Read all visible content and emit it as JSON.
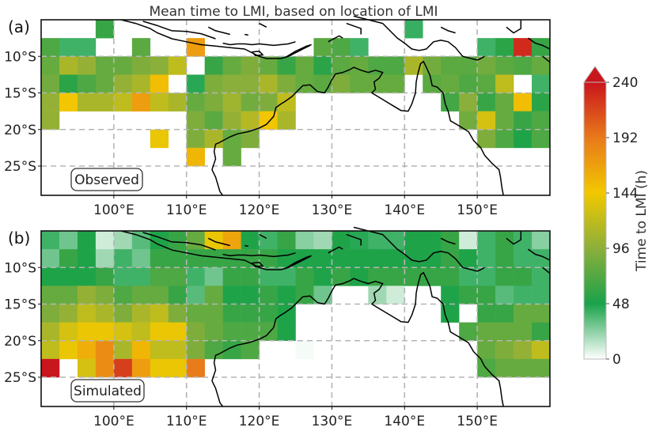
{
  "figure": {
    "title": "Mean time to LMI, based on location of LMI",
    "colorbar_label": "Time to LMI (h)",
    "colorbar_ticks": [
      "0",
      "48",
      "96",
      "144",
      "192",
      "240"
    ],
    "colorbar_range": [
      0,
      240
    ],
    "colorbar_extend": "max",
    "colormap_stops": [
      "#ffffff",
      "#1aa24a",
      "#8caf3a",
      "#f2c800",
      "#e8791b",
      "#c9151c"
    ],
    "colors": {
      "land": "#ffffff",
      "grid": "#b5b5b5",
      "coast": "#000000",
      "over": "#c9151c"
    }
  },
  "map": {
    "lon_range": [
      90,
      160
    ],
    "lat_range": [
      -29,
      -5
    ],
    "xticks": [
      "100°E",
      "110°E",
      "120°E",
      "130°E",
      "140°E",
      "150°E"
    ],
    "yticks": [
      "10°S",
      "15°S",
      "20°S",
      "25°S"
    ],
    "cell_size_deg": 2.5
  },
  "panels": [
    {
      "label": "(a)",
      "box_label": "Observed",
      "rows_note": "values in hours; null = no data",
      "lat_top": -5,
      "rows": [
        [
          null,
          null,
          null,
          60,
          null,
          null,
          null,
          null,
          null,
          null,
          null,
          null,
          null,
          null,
          null,
          null,
          null,
          null,
          null,
          null,
          42,
          null,
          null,
          null,
          null,
          null,
          null,
          null
        ],
        [
          70,
          40,
          40,
          null,
          null,
          75,
          null,
          null,
          170,
          null,
          null,
          null,
          null,
          null,
          null,
          75,
          70,
          40,
          null,
          null,
          null,
          null,
          null,
          null,
          40,
          55,
          230,
          60
        ],
        [
          80,
          110,
          100,
          80,
          80,
          90,
          95,
          120,
          null,
          60,
          80,
          90,
          80,
          60,
          80,
          55,
          75,
          80,
          70,
          70,
          110,
          85,
          75,
          75,
          85,
          75,
          70,
          80
        ],
        [
          85,
          55,
          70,
          80,
          100,
          110,
          150,
          null,
          45,
          90,
          95,
          95,
          110,
          90,
          80,
          75,
          90,
          80,
          80,
          80,
          null,
          75,
          80,
          70,
          75,
          120,
          null,
          40
        ],
        [
          100,
          145,
          110,
          110,
          120,
          170,
          120,
          110,
          80,
          90,
          105,
          85,
          90,
          120,
          null,
          null,
          null,
          null,
          null,
          null,
          null,
          null,
          65,
          95,
          60,
          80,
          150,
          55
        ],
        [
          100,
          null,
          null,
          null,
          null,
          null,
          null,
          null,
          90,
          75,
          100,
          115,
          145,
          110,
          null,
          null,
          null,
          null,
          null,
          null,
          null,
          null,
          null,
          85,
          130,
          80,
          60,
          70
        ],
        [
          null,
          null,
          null,
          null,
          null,
          null,
          140,
          null,
          90,
          110,
          80,
          90,
          null,
          null,
          null,
          null,
          null,
          null,
          null,
          null,
          null,
          null,
          null,
          null,
          90,
          70,
          50,
          70
        ],
        [
          null,
          null,
          null,
          null,
          null,
          null,
          null,
          null,
          155,
          null,
          80,
          null,
          null,
          null,
          null,
          null,
          null,
          null,
          null,
          null,
          null,
          null,
          null,
          null,
          null,
          null,
          null,
          null
        ]
      ]
    },
    {
      "label": "(b)",
      "box_label": "Simulated",
      "rows_note": "values in hours; null = no data",
      "lat_top": -5,
      "rows": [
        [
          40,
          30,
          50,
          10,
          20,
          35,
          50,
          60,
          80,
          140,
          165,
          50,
          40,
          60,
          25,
          20,
          50,
          45,
          40,
          40,
          50,
          50,
          60,
          10,
          40,
          60,
          40,
          25
        ],
        [
          30,
          60,
          50,
          20,
          40,
          30,
          60,
          60,
          60,
          60,
          60,
          60,
          60,
          50,
          50,
          50,
          50,
          50,
          50,
          50,
          50,
          50,
          60,
          50,
          40,
          60,
          40,
          40
        ],
        [
          50,
          50,
          50,
          60,
          40,
          40,
          70,
          70,
          40,
          30,
          60,
          60,
          40,
          40,
          60,
          50,
          60,
          50,
          60,
          60,
          60,
          60,
          60,
          40,
          40,
          60,
          60,
          40
        ],
        [
          80,
          80,
          100,
          90,
          70,
          80,
          80,
          60,
          35,
          80,
          50,
          50,
          60,
          50,
          60,
          30,
          null,
          null,
          20,
          10,
          null,
          null,
          50,
          60,
          60,
          35,
          40,
          40
        ],
        [
          90,
          100,
          120,
          110,
          90,
          110,
          120,
          90,
          80,
          80,
          60,
          60,
          60,
          50,
          null,
          null,
          null,
          null,
          null,
          null,
          null,
          null,
          50,
          null,
          60,
          60,
          80,
          80
        ],
        [
          110,
          130,
          140,
          140,
          130,
          120,
          140,
          140,
          90,
          80,
          70,
          70,
          70,
          50,
          null,
          null,
          null,
          null,
          null,
          null,
          null,
          null,
          null,
          70,
          80,
          80,
          80,
          60
        ],
        [
          120,
          140,
          160,
          180,
          110,
          155,
          120,
          120,
          90,
          70,
          60,
          70,
          null,
          null,
          2,
          null,
          null,
          null,
          null,
          null,
          null,
          null,
          null,
          null,
          80,
          90,
          100,
          120
        ],
        [
          250,
          null,
          130,
          180,
          220,
          170,
          140,
          140,
          190,
          null,
          null,
          null,
          null,
          null,
          null,
          null,
          null,
          null,
          null,
          null,
          null,
          null,
          null,
          null,
          70,
          80,
          80,
          80
        ]
      ]
    }
  ]
}
